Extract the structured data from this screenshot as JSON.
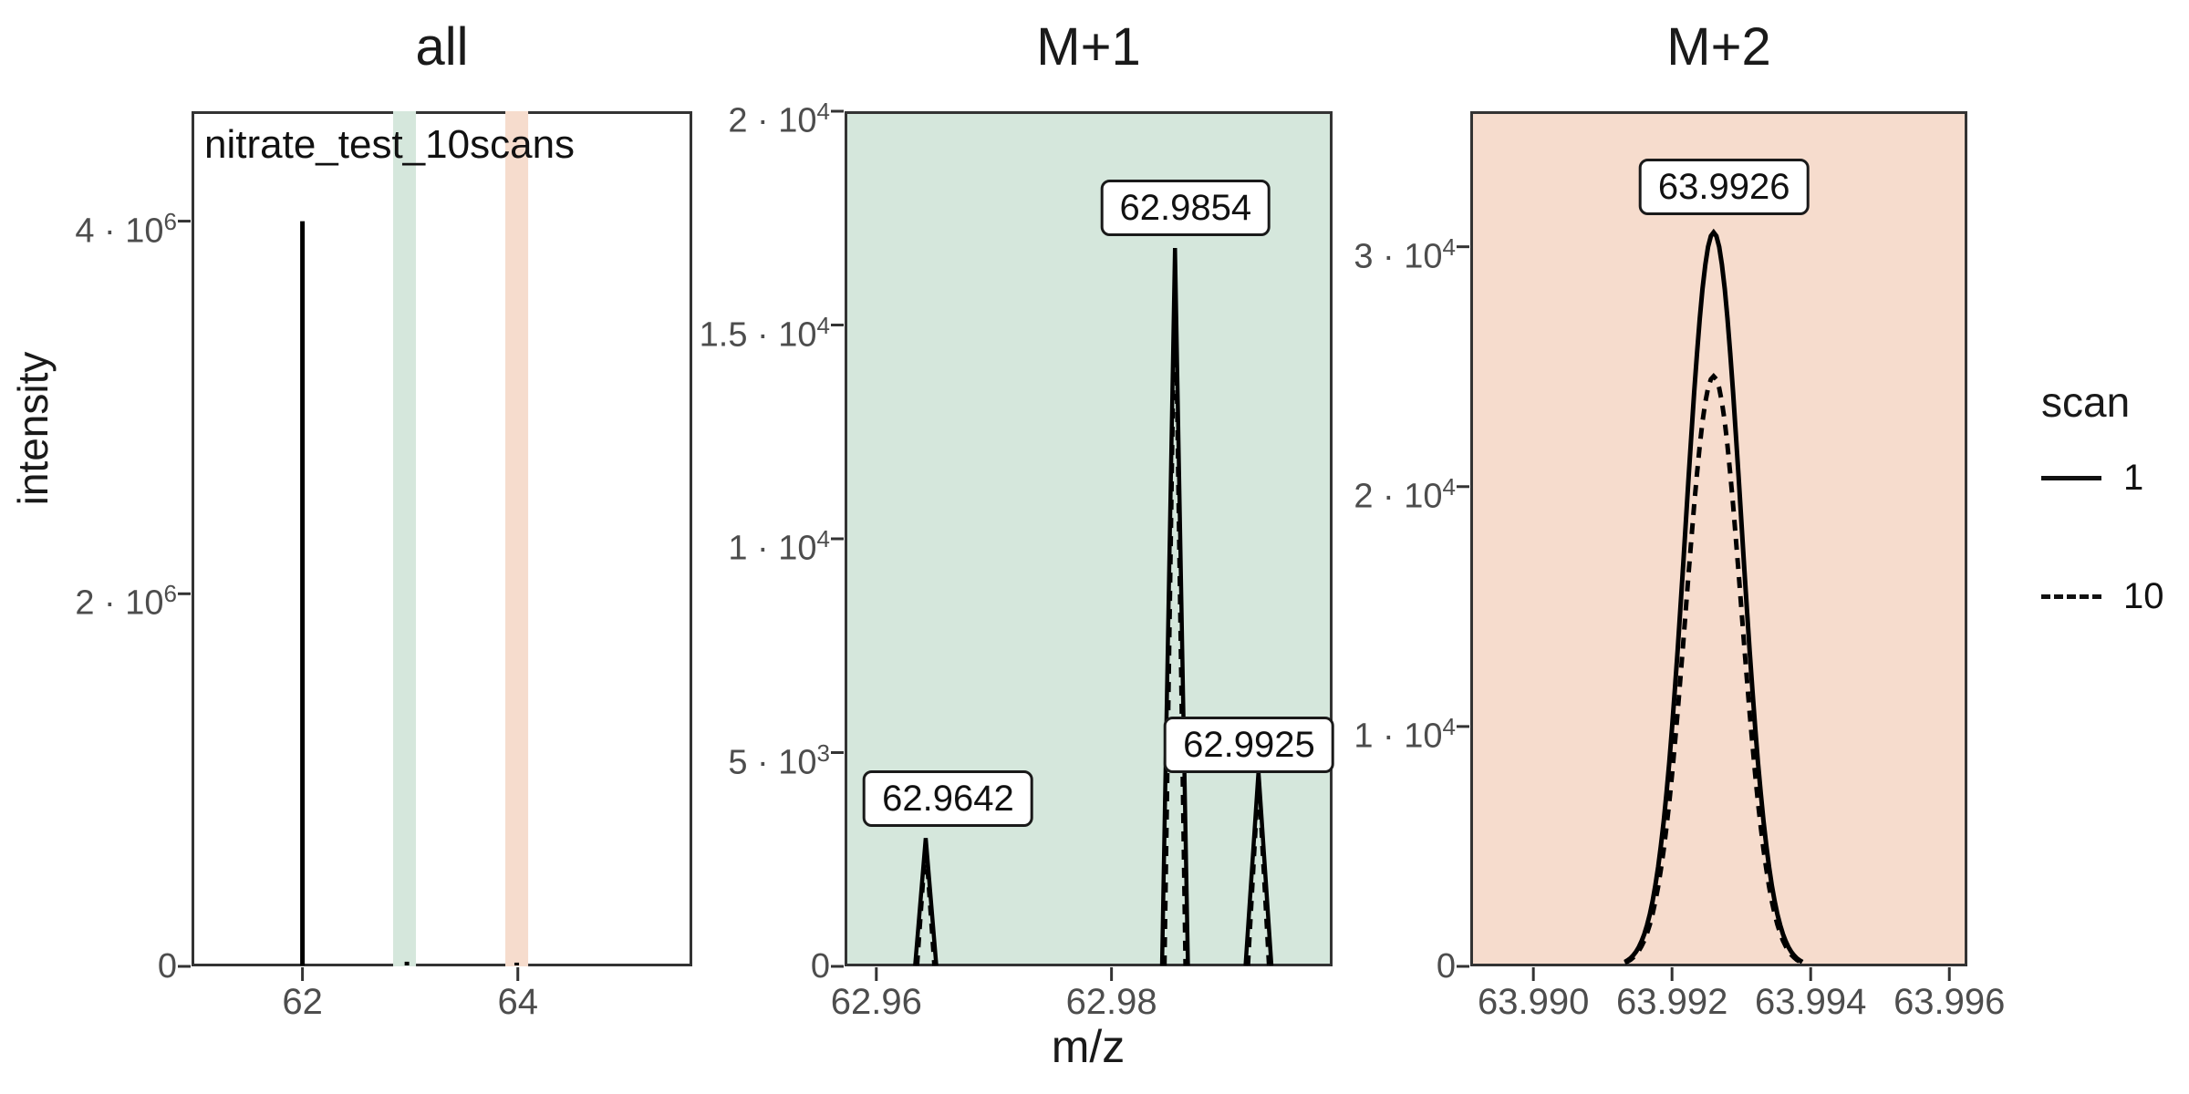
{
  "figure_titles": {
    "panel1": "all",
    "panel2": "M+1",
    "panel3": "M+2"
  },
  "axis_labels": {
    "y": "intensity",
    "x": "m/z"
  },
  "annotation": "nitrate_test_10scans",
  "legend": {
    "title": "scan",
    "items": [
      {
        "label": "1",
        "style": "solid"
      },
      {
        "label": "10",
        "style": "dashed"
      }
    ]
  },
  "colors": {
    "green": "#d5e7dc",
    "peach": "#f6dccd",
    "line": "#000000",
    "border": "#333333",
    "tick_text": "#4d4d4d",
    "white": "#ffffff"
  },
  "chart_data": [
    {
      "panel": "all",
      "type": "line",
      "bg": "white",
      "xlim": [
        60.97,
        65.62
      ],
      "ylim": [
        0,
        4590000
      ],
      "xticks": [
        {
          "v": 62,
          "label": "62"
        },
        {
          "v": 64,
          "label": "64"
        }
      ],
      "yticks": [
        {
          "v": 0,
          "mant": "0",
          "exp": ""
        },
        {
          "v": 2000000,
          "mant": "2 · 10",
          "exp": "6"
        },
        {
          "v": 4000000,
          "mant": "4 · 10",
          "exp": "6"
        }
      ],
      "bands": [
        {
          "from": 62.842,
          "to": 63.054,
          "color": "green"
        },
        {
          "from": 63.884,
          "to": 64.096,
          "color": "peach"
        }
      ],
      "peaks": [
        {
          "mz": 62.0,
          "scan1": 4000000,
          "scan10": 4000000,
          "halfwidth": 0.002,
          "shape": "spike"
        },
        {
          "mz": 62.97,
          "scan1": 25000,
          "scan10": 25000,
          "halfwidth": 0.01,
          "shape": "spike"
        },
        {
          "mz": 63.99,
          "scan1": 20000,
          "scan10": 20000,
          "halfwidth": 0.01,
          "shape": "spike"
        }
      ],
      "labels": []
    },
    {
      "panel": "M+1",
      "type": "line",
      "bg": "green",
      "xlim": [
        62.9573,
        62.9988
      ],
      "ylim": [
        0,
        20000
      ],
      "xticks": [
        {
          "v": 62.96,
          "label": "62.96"
        },
        {
          "v": 62.98,
          "label": "62.98"
        }
      ],
      "yticks": [
        {
          "v": 0,
          "mant": "0",
          "exp": ""
        },
        {
          "v": 5000,
          "mant": "5 · 10",
          "exp": "3"
        },
        {
          "v": 10000,
          "mant": "1 · 10",
          "exp": "4"
        },
        {
          "v": 15000,
          "mant": "1.5 · 10",
          "exp": "4"
        },
        {
          "v": 20000,
          "mant": "2 · 10",
          "exp": "4"
        }
      ],
      "bands": [],
      "peaks": [
        {
          "mz": 62.9642,
          "scan1": 3000,
          "scan10": 2850,
          "halfwidth": 0.0009,
          "shape": "triangle"
        },
        {
          "mz": 62.9854,
          "scan1": 16800,
          "scan10": 16300,
          "halfwidth": 0.0011,
          "shape": "triangle"
        },
        {
          "mz": 62.9925,
          "scan1": 4550,
          "scan10": 4400,
          "halfwidth": 0.0011,
          "shape": "triangle"
        }
      ],
      "labels": [
        {
          "text": "62.9642",
          "mz": 62.9661,
          "intensity": 3920
        },
        {
          "text": "62.9854",
          "mz": 62.9863,
          "intensity": 17740
        },
        {
          "text": "62.9925",
          "mz": 62.9917,
          "intensity": 5190
        }
      ]
    },
    {
      "panel": "M+2",
      "type": "line",
      "bg": "peach",
      "xlim": [
        63.98909,
        63.99626
      ],
      "ylim": [
        0,
        35650
      ],
      "xticks": [
        {
          "v": 63.99,
          "label": "63.990"
        },
        {
          "v": 63.992,
          "label": "63.992"
        },
        {
          "v": 63.994,
          "label": "63.994"
        },
        {
          "v": 63.996,
          "label": "63.996"
        }
      ],
      "yticks": [
        {
          "v": 0,
          "mant": "0",
          "exp": ""
        },
        {
          "v": 10000,
          "mant": "1 · 10",
          "exp": "4"
        },
        {
          "v": 20000,
          "mant": "2 · 10",
          "exp": "4"
        },
        {
          "v": 30000,
          "mant": "3 · 10",
          "exp": "4"
        }
      ],
      "bands": [],
      "peaks": [
        {
          "mz": 63.9926,
          "scan1": 30600,
          "scan10": 24600,
          "halfwidth": 0.0012,
          "sigma": 0.0004,
          "shape": "gauss"
        }
      ],
      "labels": [
        {
          "text": "63.9926",
          "mz": 63.99275,
          "intensity": 32500
        }
      ]
    }
  ]
}
